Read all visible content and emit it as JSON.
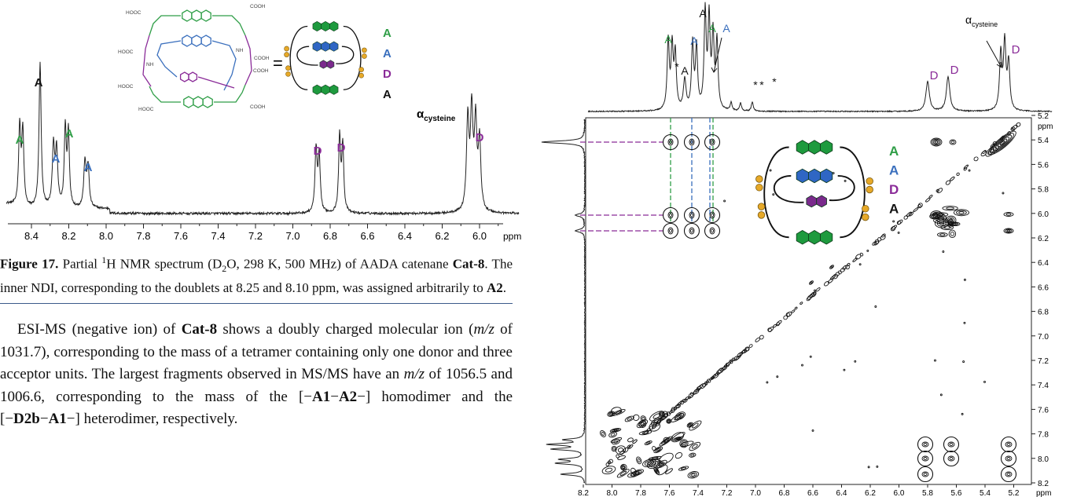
{
  "figure17": {
    "structure_labels": [
      "HOOC",
      "COOH",
      "HOOC",
      "NH",
      "NH",
      "COOH",
      "COOH",
      "HOOC",
      "HOOC",
      "COOH"
    ],
    "equals": "=",
    "scheme_labels": [
      "A",
      "A",
      "D",
      "A"
    ],
    "peak_labels": [
      "A",
      "A",
      "A",
      "A",
      "A",
      "D",
      "D",
      "D"
    ],
    "alpha_label": {
      "symbol": "α",
      "subscript": "cysteine"
    },
    "x_ticks": [
      "8.4",
      "8.2",
      "8.0",
      "7.8",
      "7.6",
      "7.4",
      "7.2",
      "7.0",
      "6.8",
      "6.6",
      "6.4",
      "6.2",
      "6.0"
    ],
    "x_unit": "ppm",
    "caption": {
      "label": "Figure 17.",
      "parts": [
        "Partial ",
        "1",
        "H NMR spectrum (D",
        "2",
        "O, 298 K, 500 MHz) of AADA catenane ",
        "Cat-8",
        ". The inner NDI, corresponding to the doublets at 8.25 and 8.10 ppm, was assigned arbitrarily to ",
        "A2",
        "."
      ]
    }
  },
  "body_text": {
    "parts": [
      "ESI-MS (negative ion) of ",
      "Cat-8",
      " shows a doubly charged molecular ion (",
      "m/z",
      " of 1031.7), corresponding to the mass of a tetramer containing only one donor and three acceptor units. The largest fragments observed in MS/MS have an ",
      "m/z",
      " of 1056.5 and 1006.6, corresponding to the mass of the [−",
      "A1",
      "−",
      "A2",
      "−] homodimer and the [−",
      "D2b",
      "−",
      "A1",
      "−] heterodimer, respectively."
    ]
  },
  "figure_2d": {
    "top_labels": [
      "A",
      "*",
      "A",
      "A",
      "A",
      "A",
      "A",
      "*",
      "*",
      "*",
      "D",
      "D",
      "D"
    ],
    "alpha_label": {
      "symbol": "α",
      "subscript": "cysteine"
    },
    "scheme_labels": [
      "A",
      "A",
      "D",
      "A"
    ],
    "x_ticks": [
      "8.2",
      "8.0",
      "7.8",
      "7.6",
      "7.4",
      "7.2",
      "7.0",
      "6.8",
      "6.6",
      "6.4",
      "6.2",
      "6.0",
      "5.8",
      "5.6",
      "5.4",
      "5.2"
    ],
    "x_unit": "ppm",
    "y_ticks": [
      "5.2",
      "5.4",
      "5.6",
      "5.8",
      "6.0",
      "6.2",
      "6.4",
      "6.6",
      "6.8",
      "7.0",
      "7.2",
      "7.4",
      "7.6",
      "7.8",
      "8.0",
      "8.2"
    ],
    "y_unit": "ppm"
  }
}
